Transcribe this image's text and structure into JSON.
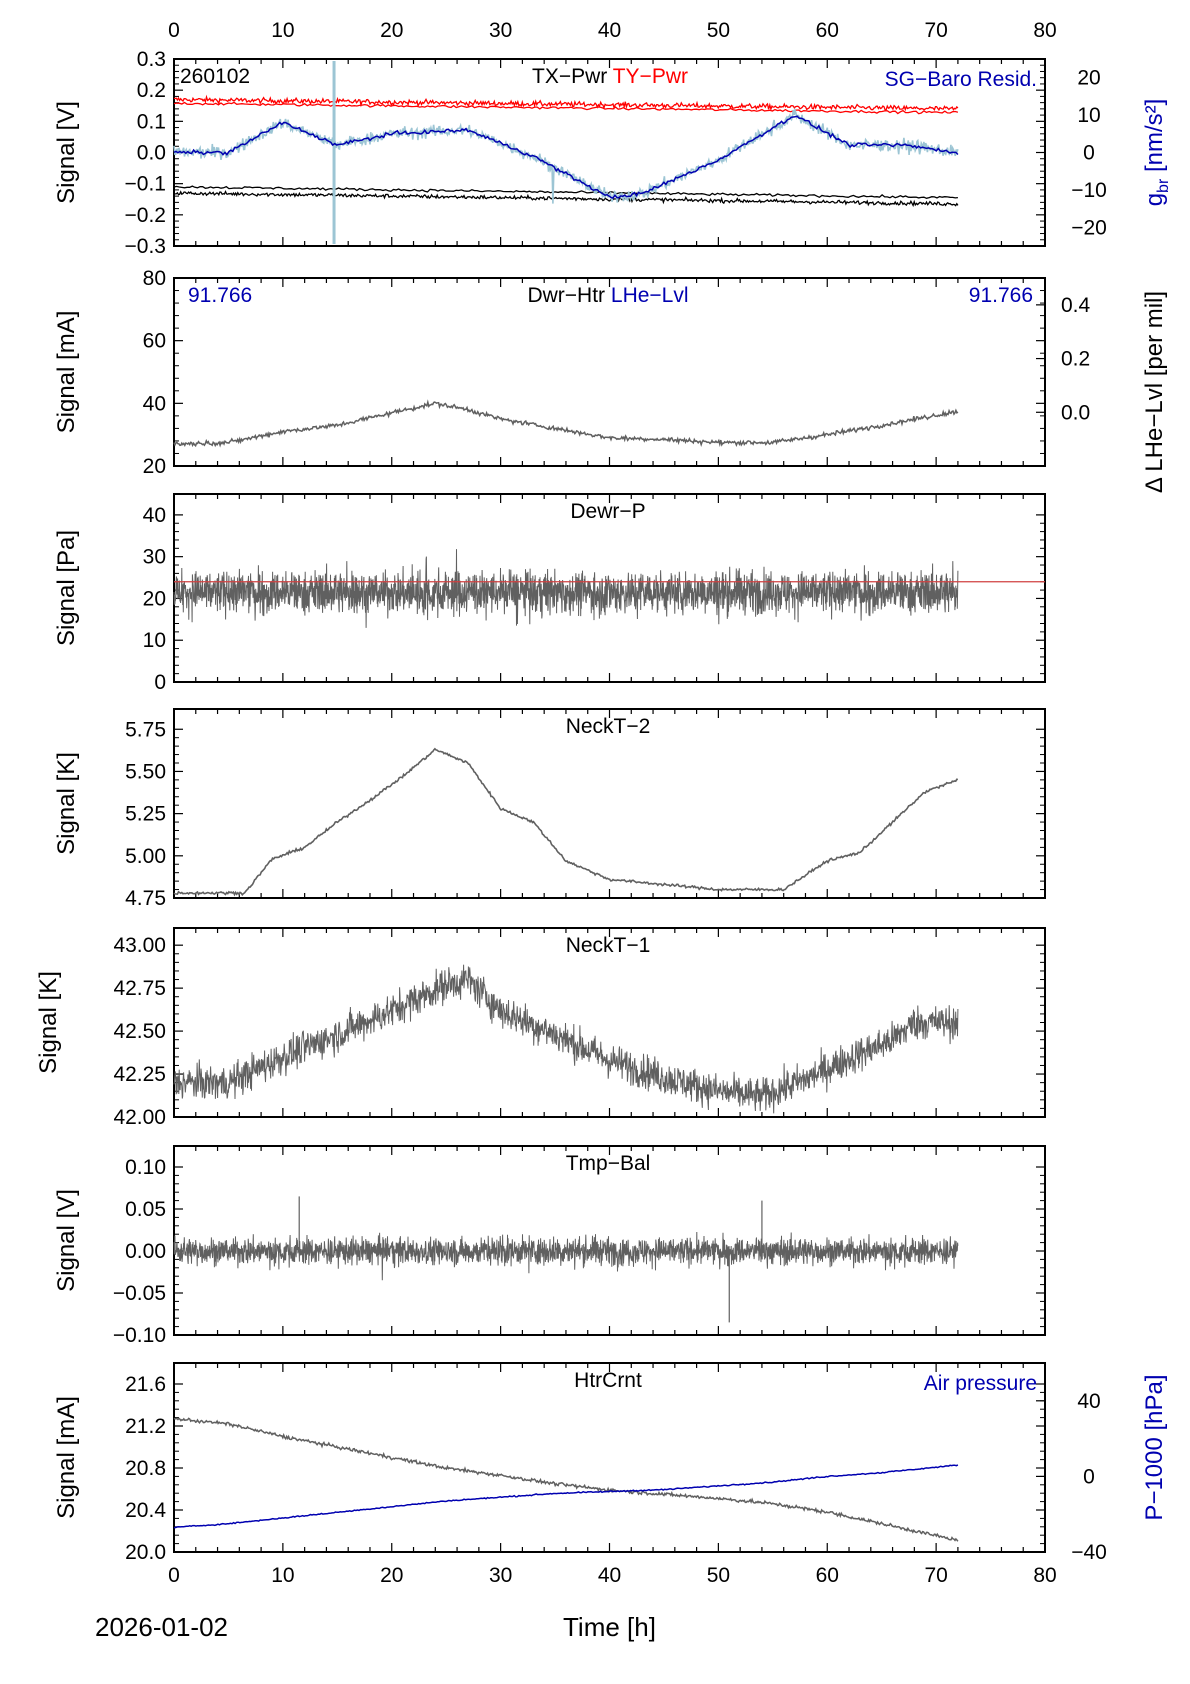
{
  "date_label": "2026-01-02",
  "x_axis_label": "Time [h]",
  "x_range": [
    0,
    80
  ],
  "x_ticks": [
    0,
    10,
    20,
    30,
    40,
    50,
    60,
    70,
    80
  ],
  "data_end_hours": 72,
  "colors": {
    "gray": "#606060",
    "black": "#000000",
    "red": "#ff0000",
    "blue": "#0000b0",
    "lightblue": "#9cc5d4",
    "threshold": "#d04040"
  },
  "chart_data": [
    {
      "id": "p1",
      "type": "line",
      "labels": {
        "tag": "260102",
        "title_a": "TX−Pwr",
        "title_b": "TY−Pwr",
        "title_right": "SG−Baro Resid."
      },
      "ylabel": "Signal [V]",
      "ylim": [
        -0.3,
        0.3
      ],
      "yticks": [
        0.3,
        0.2,
        0.1,
        0.0,
        -0.1,
        -0.2,
        -0.3
      ],
      "ytick_labels": [
        "0.3",
        "0.2",
        "0.1",
        "0.0",
        "−0.1",
        "−0.2",
        "−0.3"
      ],
      "y2label_main": "g",
      "y2label_sub": "br",
      "y2label_unit": " [nm/s²]",
      "y2lim": [
        -25,
        25
      ],
      "y2ticks": [
        20,
        10,
        0,
        -10,
        -20
      ],
      "y2tick_labels": [
        "20",
        "10",
        "0",
        "−10",
        "−20"
      ],
      "series": [
        {
          "name": "TY−Pwr",
          "color": "red",
          "x": [
            0,
            72
          ],
          "values": [
            0.17,
            0.14
          ]
        },
        {
          "name": "TX−Pwr",
          "color": "black",
          "x": [
            0,
            72
          ],
          "values": [
            -0.13,
            -0.165
          ]
        },
        {
          "name": "SG−Baro Resid.",
          "color": "blue",
          "axis": "y2",
          "x": [
            0,
            5,
            10,
            15,
            20,
            27,
            33,
            40,
            43,
            50,
            57,
            62,
            67,
            72
          ],
          "values": [
            0,
            0,
            8,
            2,
            5,
            6,
            -1,
            -12,
            -11,
            -2,
            10,
            2,
            2,
            0
          ]
        }
      ]
    },
    {
      "id": "p2",
      "type": "line",
      "labels": {
        "title_a": "Dwr−Htr",
        "title_b": "LHe−Lvl",
        "num_left": "91.766",
        "num_right": "91.766"
      },
      "ylabel": "Signal [mA]",
      "ylim": [
        20,
        80
      ],
      "yticks": [
        80,
        60,
        40,
        20
      ],
      "ytick_labels": [
        "80",
        "60",
        "40",
        "20"
      ],
      "y2label": "Δ LHe−Lvl [per mil]",
      "y2lim": [
        -0.2,
        0.5
      ],
      "y2ticks": [
        0.4,
        0.2,
        0.0
      ],
      "y2tick_labels": [
        "0.4",
        "0.2",
        "0.0"
      ],
      "series": [
        {
          "name": "Dwr−Htr",
          "color": "gray",
          "x": [
            0,
            5,
            10,
            15,
            20,
            24,
            27,
            30,
            35,
            40,
            45,
            50,
            55,
            60,
            65,
            72
          ],
          "values": [
            27,
            27.5,
            31,
            33,
            37,
            40,
            38,
            35,
            32,
            29,
            28.5,
            27.5,
            27.5,
            30,
            33,
            37.5
          ]
        }
      ]
    },
    {
      "id": "p3",
      "type": "line",
      "labels": {
        "title_a": "Dewr−P"
      },
      "ylabel": "Signal [Pa]",
      "ylim": [
        0,
        45
      ],
      "yticks": [
        40,
        30,
        20,
        10,
        0
      ],
      "ytick_labels": [
        "40",
        "30",
        "20",
        "10",
        "0"
      ],
      "threshold": 24,
      "series": [
        {
          "name": "Dewr−P",
          "color": "gray",
          "x": [
            0,
            72
          ],
          "values": [
            21.5,
            21.5
          ]
        }
      ]
    },
    {
      "id": "p4",
      "type": "line",
      "labels": {
        "title_a": "NeckT−2"
      },
      "ylabel": "Signal [K]",
      "ylim": [
        4.75,
        5.87
      ],
      "yticks": [
        5.75,
        5.5,
        5.25,
        5.0,
        4.75
      ],
      "ytick_labels": [
        "5.75",
        "5.50",
        "5.25",
        "5.00",
        "4.75"
      ],
      "series": [
        {
          "name": "NeckT−2",
          "color": "gray",
          "x": [
            0,
            6.5,
            9,
            12,
            15,
            18,
            21,
            24,
            27,
            30,
            33,
            36,
            40,
            45,
            50,
            56,
            60,
            63,
            66,
            69,
            72
          ],
          "values": [
            4.78,
            4.78,
            4.98,
            5.05,
            5.2,
            5.33,
            5.47,
            5.63,
            5.55,
            5.28,
            5.2,
            4.97,
            4.86,
            4.83,
            4.8,
            4.8,
            4.97,
            5.02,
            5.2,
            5.38,
            5.45
          ]
        }
      ]
    },
    {
      "id": "p5",
      "type": "line",
      "labels": {
        "title_a": "NeckT−1"
      },
      "ylabel": "Signal [K]",
      "ylim": [
        42.0,
        43.1
      ],
      "yticks": [
        43.0,
        42.75,
        42.5,
        42.25,
        42.0
      ],
      "ytick_labels": [
        "43.00",
        "42.75",
        "42.50",
        "42.25",
        "42.00"
      ],
      "series": [
        {
          "name": "NeckT−1",
          "color": "gray",
          "x": [
            0,
            5,
            10,
            15,
            20,
            25,
            27,
            30,
            35,
            40,
            45,
            50,
            54,
            58,
            62,
            66,
            68,
            72
          ],
          "values": [
            42.2,
            42.2,
            42.35,
            42.48,
            42.62,
            42.77,
            42.8,
            42.62,
            42.48,
            42.33,
            42.23,
            42.15,
            42.12,
            42.22,
            42.34,
            42.45,
            42.55,
            42.55
          ]
        }
      ]
    },
    {
      "id": "p6",
      "type": "line",
      "labels": {
        "title_a": "Tmp−Bal"
      },
      "ylabel": "Signal [V]",
      "ylim": [
        -0.1,
        0.125
      ],
      "yticks": [
        0.1,
        0.05,
        0.0,
        -0.05,
        -0.1
      ],
      "ytick_labels": [
        "0.10",
        "0.05",
        "0.00",
        "−0.05",
        "−0.10"
      ],
      "series": [
        {
          "name": "Tmp−Bal",
          "color": "gray",
          "x": [
            0,
            72
          ],
          "values": [
            0,
            0
          ]
        }
      ]
    },
    {
      "id": "p7",
      "type": "line",
      "labels": {
        "title_a": "HtrCrnt",
        "title_right": "Air pressure"
      },
      "ylabel": "Signal [mA]",
      "ylim": [
        20.0,
        21.8
      ],
      "yticks": [
        21.6,
        21.2,
        20.8,
        20.4,
        20.0
      ],
      "ytick_labels": [
        "21.6",
        "21.2",
        "20.8",
        "20.4",
        "20.0"
      ],
      "y2label": "P−1000 [hPa]",
      "y2lim": [
        -40,
        60
      ],
      "y2ticks": [
        40,
        0,
        -40
      ],
      "y2tick_labels": [
        "40",
        "0",
        "−40"
      ],
      "series": [
        {
          "name": "HtrCrnt",
          "color": "gray",
          "x": [
            0,
            5,
            10,
            15,
            20,
            25,
            30,
            35,
            40,
            45,
            50,
            55,
            60,
            65,
            72
          ],
          "values": [
            21.27,
            21.22,
            21.1,
            21.0,
            20.9,
            20.8,
            20.73,
            20.65,
            20.59,
            20.55,
            20.51,
            20.46,
            20.38,
            20.27,
            20.11
          ]
        }
      ]
    },
    {
      "id": "p7b",
      "type": "line",
      "axis": "y2",
      "series": [
        {
          "name": "Air pressure",
          "color": "blue",
          "x": [
            0,
            5,
            10,
            15,
            20,
            25,
            30,
            35,
            40,
            45,
            50,
            55,
            60,
            65,
            72
          ],
          "values": [
            -27,
            -25,
            -22,
            -19,
            -16,
            -13,
            -11,
            -9,
            -8,
            -7,
            -5,
            -3,
            0,
            2,
            6
          ]
        }
      ]
    }
  ]
}
